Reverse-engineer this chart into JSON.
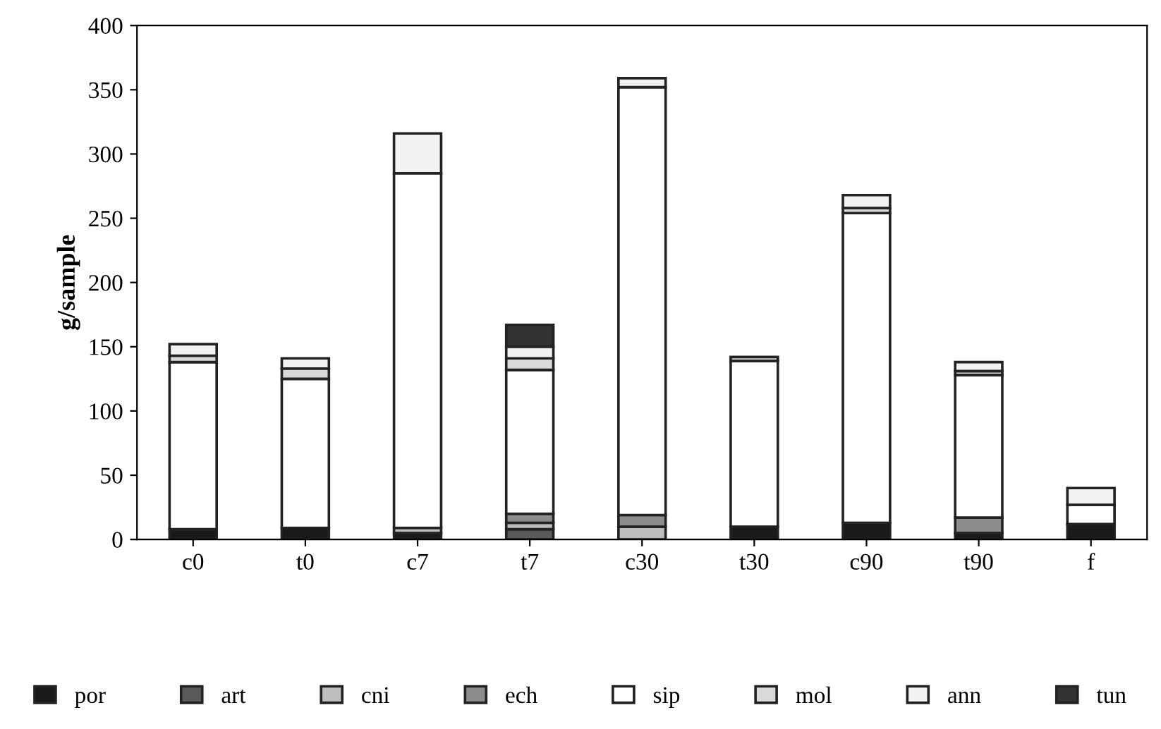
{
  "chart_data": {
    "type": "bar",
    "stacked": true,
    "ylabel": "g/sample",
    "categories": [
      "c0",
      "t0",
      "c7",
      "t7",
      "c30",
      "t30",
      "c90",
      "t90",
      "f"
    ],
    "series": [
      {
        "name": "por",
        "color": "#1a1a1a",
        "values": [
          8,
          9,
          5,
          0,
          0,
          10,
          13,
          5,
          12
        ]
      },
      {
        "name": "art",
        "color": "#5a5a5a",
        "values": [
          0,
          0,
          0,
          8,
          0,
          0,
          0,
          0,
          0
        ]
      },
      {
        "name": "cni",
        "color": "#bdbdbd",
        "values": [
          0,
          0,
          4,
          5,
          10,
          0,
          0,
          0,
          0
        ]
      },
      {
        "name": "ech",
        "color": "#8c8c8c",
        "values": [
          0,
          0,
          0,
          7,
          9,
          0,
          0,
          12,
          0
        ]
      },
      {
        "name": "sip",
        "color": "#ffffff",
        "values": [
          130,
          116,
          276,
          112,
          333,
          129,
          241,
          111,
          15
        ]
      },
      {
        "name": "mol",
        "color": "#d9d9d9",
        "values": [
          5,
          8,
          0,
          9,
          0,
          3,
          4,
          3,
          0
        ]
      },
      {
        "name": "ann",
        "color": "#f2f2f2",
        "values": [
          9,
          8,
          31,
          9,
          7,
          0,
          10,
          7,
          13
        ]
      },
      {
        "name": "tun",
        "color": "#333333",
        "values": [
          0,
          0,
          0,
          17,
          0,
          0,
          0,
          0,
          0
        ]
      }
    ],
    "ylim": [
      0,
      400
    ],
    "yticks": [
      0,
      50,
      100,
      150,
      200,
      250,
      300,
      350,
      400
    ],
    "grid": false,
    "legend": "bottom"
  }
}
